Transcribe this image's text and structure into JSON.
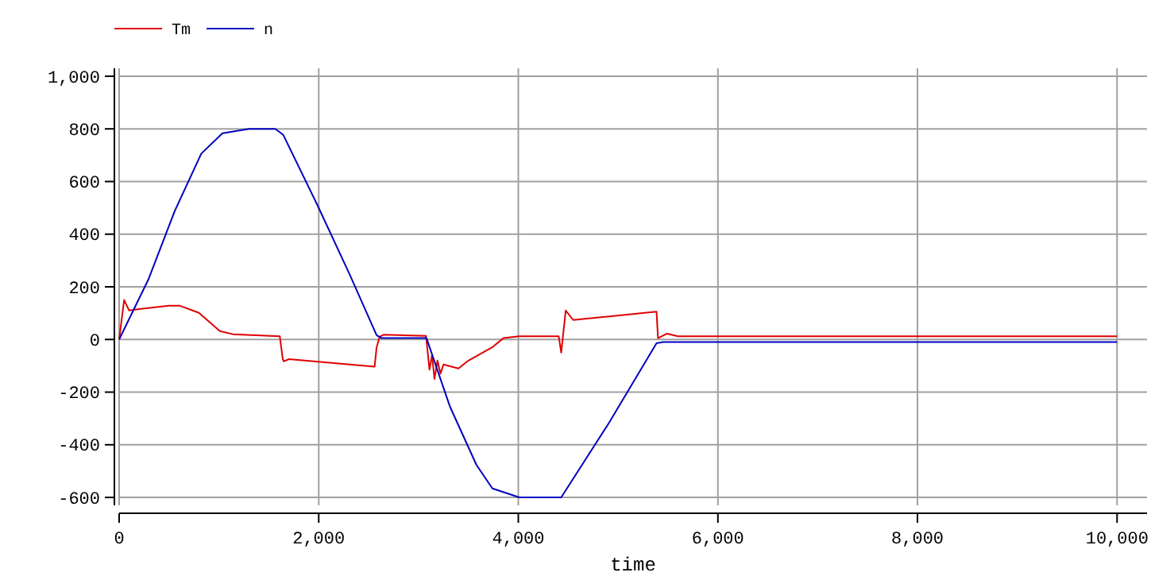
{
  "chart_data": {
    "type": "line",
    "xlabel": "time",
    "xlim": [
      0,
      10300
    ],
    "ylim": [
      -630,
      1030
    ],
    "xticks": [
      0,
      {
        "value": 2000,
        "label": "2,000"
      },
      {
        "value": 4000,
        "label": "4,000"
      },
      {
        "value": 6000,
        "label": "6,000"
      },
      {
        "value": 8000,
        "label": "8,000"
      },
      {
        "value": 10000,
        "label": "10,000"
      }
    ],
    "yticks": [
      -600,
      -400,
      -200,
      0,
      200,
      400,
      600,
      800,
      {
        "value": 1000,
        "label": "1,000"
      }
    ],
    "grid": true,
    "legend": "top left",
    "line_style": "solid",
    "marker": "none",
    "series": [
      {
        "name": "Tm",
        "color": "#e00000",
        "x": [
          0,
          50,
          100,
          185,
          500,
          610,
          800,
          1010,
          1140,
          1610,
          1640,
          1650,
          1700,
          2560,
          2580,
          2610,
          2650,
          3075,
          3110,
          3135,
          3160,
          3190,
          3220,
          3250,
          3400,
          3500,
          3745,
          3850,
          4010,
          4405,
          4430,
          4475,
          4550,
          5385,
          5400,
          5490,
          5600,
          10000
        ],
        "values": [
          0,
          150,
          110,
          115,
          128,
          128,
          101,
          32,
          20,
          12,
          -75,
          -83,
          -75,
          -103,
          -30,
          10,
          18,
          14,
          -115,
          -60,
          -150,
          -80,
          -130,
          -95,
          -110,
          -80,
          -28,
          5,
          12,
          12,
          -50,
          110,
          74,
          106,
          5,
          22,
          12,
          12
        ]
      },
      {
        "name": "n",
        "color": "#0000c0",
        "x": [
          0,
          292,
          557,
          823,
          1035,
          1300,
          1565,
          1645,
          1990,
          2310,
          2580,
          2630,
          3080,
          3315,
          3580,
          3740,
          4010,
          4430,
          4910,
          5385,
          5450,
          10000
        ],
        "values": [
          0,
          227,
          488,
          706,
          783,
          800,
          800,
          777,
          508,
          247,
          16,
          5,
          5,
          -255,
          -476,
          -566,
          -600,
          -600,
          -316,
          -14,
          -10,
          -10
        ]
      }
    ]
  }
}
